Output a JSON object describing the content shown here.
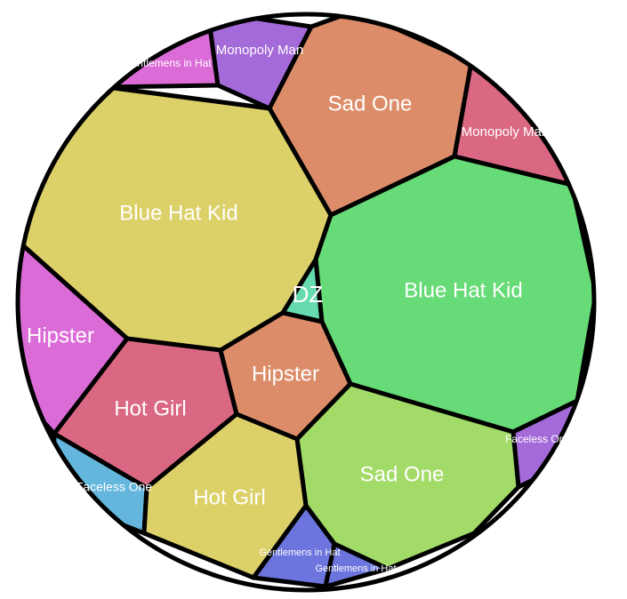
{
  "chart_data": {
    "type": "voronoi-treemap",
    "title": "",
    "cells": [
      {
        "label": "Gentlemens in Hat",
        "color": "#db6bd7"
      },
      {
        "label": "Monopoly Man",
        "color": "#a56ad9"
      },
      {
        "label": "Sad One",
        "color": "#dc8c68"
      },
      {
        "label": "Monopoly Man",
        "color": "#da6882"
      },
      {
        "label": "Blue Hat Kid",
        "color": "#dcd069"
      },
      {
        "label": "DZ",
        "color": "#66dbb0"
      },
      {
        "label": "Blue Hat Kid",
        "color": "#67db77"
      },
      {
        "label": "Hipster",
        "color": "#db6bd7"
      },
      {
        "label": "Hot Girl",
        "color": "#da6882"
      },
      {
        "label": "Hipster",
        "color": "#dc8c68"
      },
      {
        "label": "Faceless One",
        "color": "#a56ad9"
      },
      {
        "label": "Sad One",
        "color": "#a3db69"
      },
      {
        "label": "Faceless One",
        "color": "#64b6dd"
      },
      {
        "label": "Hot Girl",
        "color": "#dcd069"
      },
      {
        "label": "Gentlemens in Hat",
        "color": "#6b75dd"
      },
      {
        "label": "Gentlemens in Hat",
        "color": "#6b75dd"
      }
    ]
  }
}
